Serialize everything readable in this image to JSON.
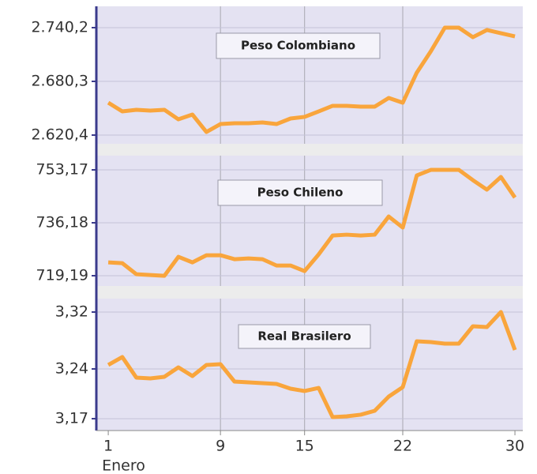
{
  "chart_data": [
    {
      "type": "line",
      "title": "Peso Colombiano",
      "color": "#f9a53c",
      "x": [
        1,
        2,
        3,
        4,
        5,
        6,
        7,
        8,
        9,
        10,
        11,
        12,
        13,
        14,
        15,
        16,
        17,
        18,
        19,
        20,
        21,
        22,
        23,
        24,
        25,
        26,
        27,
        28,
        29,
        30
      ],
      "values": [
        2656.5,
        2646.8,
        2648.6,
        2647.7,
        2648.6,
        2638.0,
        2643.3,
        2623.9,
        2632.7,
        2633.6,
        2633.6,
        2634.5,
        2632.7,
        2638.9,
        2640.7,
        2646.8,
        2653.0,
        2653.0,
        2652.1,
        2652.1,
        2661.8,
        2656.5,
        2690.0,
        2713.8,
        2740.2,
        2740.2,
        2729.6,
        2737.6,
        2734.0,
        2730.5
      ],
      "xlim": [
        0.15,
        30.56
      ],
      "ylim": [
        2610.7,
        2764
      ],
      "yticks": [
        {
          "value": 2620.4,
          "label": "2.620,4"
        },
        {
          "value": 2680.3,
          "label": "2.680,3"
        },
        {
          "value": 2740.2,
          "label": "2.740,2"
        }
      ]
    },
    {
      "type": "line",
      "title": "Peso Chileno",
      "color": "#f9a53c",
      "x": [
        1,
        2,
        3,
        4,
        5,
        6,
        7,
        8,
        9,
        10,
        11,
        12,
        13,
        14,
        15,
        16,
        17,
        18,
        19,
        20,
        21,
        22,
        23,
        24,
        25,
        26,
        27,
        28,
        29,
        30
      ],
      "values": [
        723.47,
        723.22,
        719.67,
        719.41,
        719.16,
        725.25,
        723.47,
        725.76,
        725.76,
        724.49,
        724.74,
        724.49,
        722.46,
        722.46,
        720.68,
        726.01,
        732.1,
        732.36,
        732.1,
        732.36,
        738.2,
        734.64,
        751.39,
        753.17,
        753.17,
        753.17,
        749.87,
        746.82,
        750.89,
        744.29
      ],
      "xlim": [
        0.15,
        30.56
      ],
      "ylim": [
        715.89,
        757.74
      ],
      "yticks": [
        {
          "value": 719.19,
          "label": "719,19"
        },
        {
          "value": 736.18,
          "label": "736,18"
        },
        {
          "value": 753.17,
          "label": "753,17"
        }
      ]
    },
    {
      "type": "line",
      "title": "Real Brasilero",
      "color": "#f9a53c",
      "x": [
        1,
        2,
        3,
        4,
        5,
        6,
        7,
        8,
        9,
        10,
        11,
        12,
        13,
        14,
        15,
        16,
        17,
        18,
        19,
        20,
        21,
        22,
        23,
        24,
        25,
        26,
        27,
        28,
        29,
        30
      ],
      "values": [
        3.2456,
        3.2567,
        3.2278,
        3.2267,
        3.2289,
        3.2422,
        3.23,
        3.2456,
        3.2467,
        3.2222,
        3.2211,
        3.22,
        3.2189,
        3.2122,
        3.2089,
        3.2133,
        3.1722,
        3.1733,
        3.1756,
        3.1811,
        3.2011,
        3.2144,
        3.2789,
        3.2778,
        3.2756,
        3.2756,
        3.3,
        3.2989,
        3.32,
        3.2667
      ],
      "xlim": [
        0.15,
        30.56
      ],
      "ylim": [
        3.1533,
        3.3389
      ],
      "yticks": [
        {
          "value": 3.17,
          "label": "3,17"
        },
        {
          "value": 3.24,
          "label": "3,24"
        },
        {
          "value": 3.32,
          "label": "3,32"
        }
      ],
      "xticks": [
        1,
        9,
        15,
        22,
        30
      ],
      "xlabel": "Enero"
    }
  ]
}
